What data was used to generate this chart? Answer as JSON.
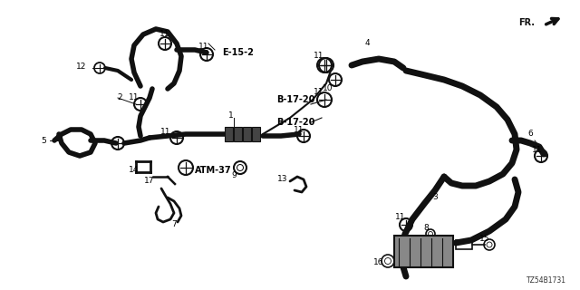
{
  "background_color": "#ffffff",
  "diagram_id": "TZ54B1731",
  "component_color": "#111111",
  "label_color": "#000000",
  "figsize": [
    6.4,
    3.2
  ],
  "dpi": 100,
  "xlim": [
    0,
    640
  ],
  "ylim": [
    0,
    320
  ]
}
